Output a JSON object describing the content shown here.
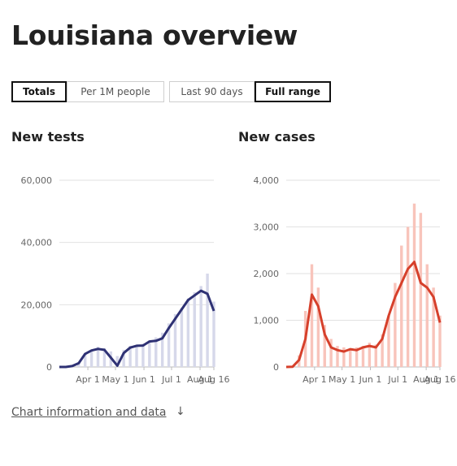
{
  "page": {
    "title": "Louisiana overview"
  },
  "controls": {
    "measure": [
      {
        "label": "Totals",
        "active": true
      },
      {
        "label": "Per 1M people",
        "active": false
      }
    ],
    "range": [
      {
        "label": "Last 90 days",
        "active": false
      },
      {
        "label": "Full range",
        "active": true
      }
    ]
  },
  "footer": {
    "link_label": "Chart information and data",
    "arrow_icon": "arrow-down-icon"
  },
  "chart_data": [
    {
      "type": "bar",
      "title": "New tests",
      "x_dates": [
        "2020-03-01",
        "2020-03-08",
        "2020-03-15",
        "2020-03-22",
        "2020-03-29",
        "2020-04-05",
        "2020-04-12",
        "2020-04-19",
        "2020-04-26",
        "2020-05-03",
        "2020-05-10",
        "2020-05-17",
        "2020-05-24",
        "2020-05-31",
        "2020-06-07",
        "2020-06-14",
        "2020-06-21",
        "2020-06-28",
        "2020-07-05",
        "2020-07-12",
        "2020-07-19",
        "2020-07-26",
        "2020-08-02",
        "2020-08-09",
        "2020-08-16"
      ],
      "series": [
        {
          "values": [
            0,
            0,
            600,
            1500,
            4500,
            5500,
            6500,
            6000,
            5000,
            3500,
            5500,
            6800,
            7000,
            7500,
            8500,
            9500,
            11000,
            14000,
            17000,
            19000,
            22000,
            24000,
            26000,
            30000,
            21000
          ]
        },
        {
          "values": [
            0,
            0,
            300,
            1200,
            4200,
            5300,
            5800,
            5500,
            3000,
            400,
            4500,
            6200,
            6800,
            6900,
            8200,
            8400,
            9200,
            12500,
            15500,
            18500,
            21500,
            23000,
            24500,
            23500,
            18000
          ]
        }
      ],
      "x_ticks": [
        "Apr 1",
        "May 1",
        "Jun 1",
        "Jul 1",
        "Aug 1",
        "Aug 16"
      ],
      "y_ticks": [
        "0",
        "20,000",
        "40,000",
        "60,000"
      ],
      "ylim": [
        0,
        60000
      ],
      "colors": {
        "bars": "#d6d8ea",
        "line": "#2e3174"
      },
      "grid": true
    },
    {
      "type": "bar",
      "title": "New cases",
      "x_dates": [
        "2020-03-01",
        "2020-03-08",
        "2020-03-15",
        "2020-03-22",
        "2020-03-29",
        "2020-04-05",
        "2020-04-12",
        "2020-04-19",
        "2020-04-26",
        "2020-05-03",
        "2020-05-10",
        "2020-05-17",
        "2020-05-24",
        "2020-05-31",
        "2020-06-07",
        "2020-06-14",
        "2020-06-21",
        "2020-06-28",
        "2020-07-05",
        "2020-07-12",
        "2020-07-19",
        "2020-07-26",
        "2020-08-02",
        "2020-08-09",
        "2020-08-16"
      ],
      "series": [
        {
          "values": [
            0,
            5,
            250,
            1200,
            2200,
            1700,
            900,
            600,
            450,
            420,
            400,
            420,
            450,
            520,
            480,
            700,
            1100,
            1800,
            2600,
            3000,
            3500,
            3300,
            2200,
            1700,
            1100
          ]
        },
        {
          "values": [
            0,
            5,
            150,
            600,
            1550,
            1300,
            700,
            420,
            360,
            330,
            380,
            360,
            420,
            450,
            420,
            600,
            1100,
            1500,
            1800,
            2100,
            2250,
            1800,
            1700,
            1500,
            950
          ]
        }
      ],
      "x_ticks": [
        "Apr 1",
        "May 1",
        "Jun 1",
        "Jul 1",
        "Aug 1",
        "Aug 16"
      ],
      "y_ticks": [
        "0",
        "1,000",
        "2,000",
        "3,000",
        "4,000"
      ],
      "ylim": [
        0,
        4000
      ],
      "colors": {
        "bars": "#f8c4bb",
        "line": "#d6402b"
      },
      "grid": true
    }
  ]
}
